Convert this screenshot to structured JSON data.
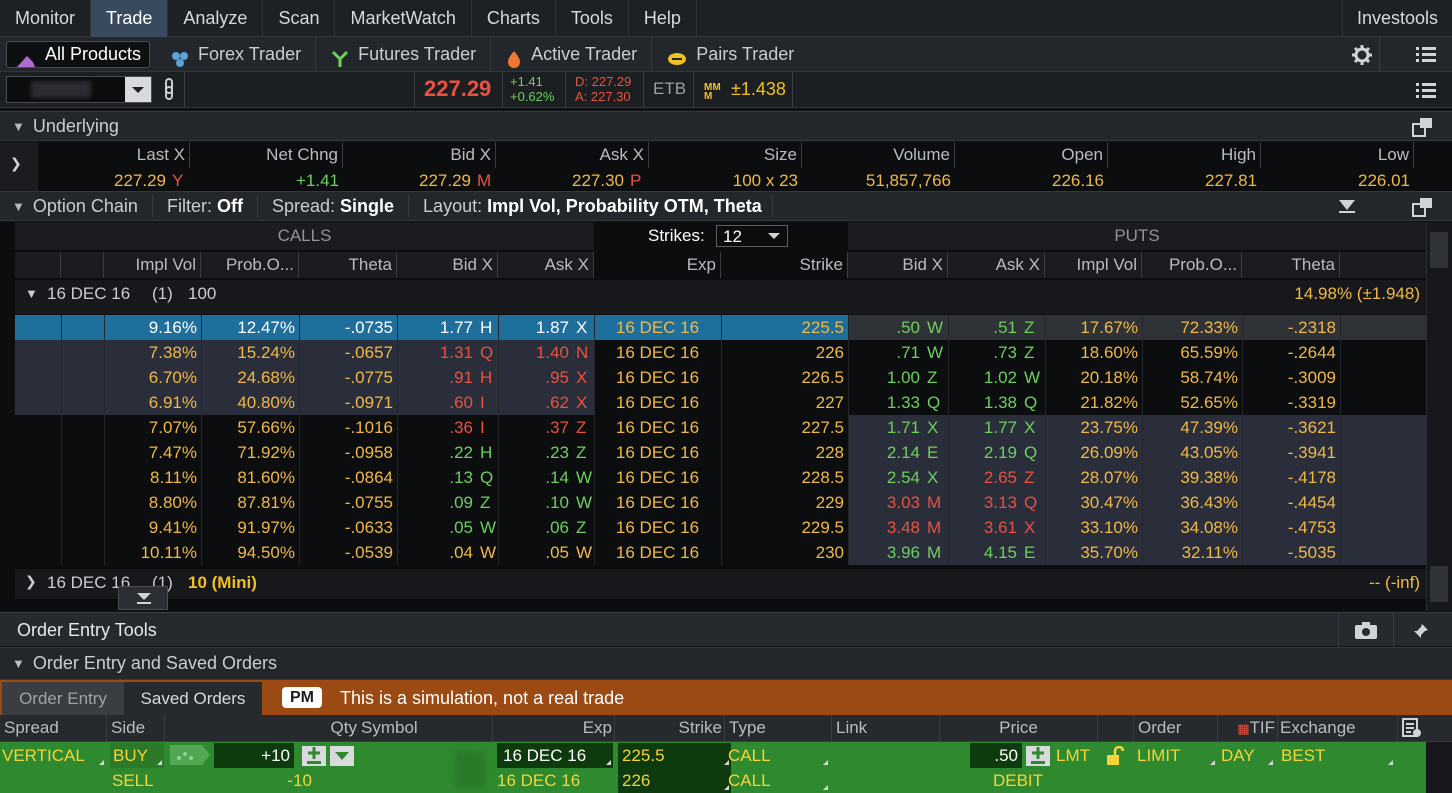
{
  "menu": {
    "items": [
      "Monitor",
      "Trade",
      "Analyze",
      "Scan",
      "MarketWatch",
      "Charts",
      "Tools",
      "Help"
    ],
    "active": "Trade",
    "right_label": "Investools"
  },
  "subtabs": [
    "All Products",
    "Forex Trader",
    "Futures Trader",
    "Active Trader",
    "Pairs Trader"
  ],
  "quote": {
    "last": "227.29",
    "change": "+1.41",
    "change_pct": "+0.62%",
    "bid": "D: 227.29",
    "ask": "A: 227.30",
    "etb": "ETB",
    "mm_value": "±1.438"
  },
  "underlying": {
    "title": "Underlying",
    "headers": [
      "Last X",
      "Net Chng",
      "Bid X",
      "Ask X",
      "Size",
      "Volume",
      "Open",
      "High",
      "Low"
    ],
    "values": {
      "last": "227.29",
      "last_ex": "Y",
      "net_chng": "+1.41",
      "bid": "227.29",
      "bid_ex": "M",
      "ask": "227.30",
      "ask_ex": "P",
      "size": "100 x 23",
      "volume": "51,857,766",
      "open": "226.16",
      "high": "227.81",
      "low": "226.01"
    }
  },
  "option_chain": {
    "title": "Option Chain",
    "filter_label": "Filter:",
    "filter_value": "Off",
    "spread_label": "Spread:",
    "spread_value": "Single",
    "layout_label": "Layout:",
    "layout_value": "Impl Vol, Probability OTM, Theta",
    "calls_label": "CALLS",
    "puts_label": "PUTS",
    "strikes_label": "Strikes:",
    "strikes_value": "12",
    "call_headers": [
      "Impl Vol",
      "Prob.O...",
      "Theta",
      "Bid X",
      "Ask X"
    ],
    "mid_headers": [
      "Exp",
      "Strike"
    ],
    "put_headers": [
      "Bid X",
      "Ask X",
      "Impl Vol",
      "Prob.O...",
      "Theta"
    ],
    "group1": {
      "label": "16 DEC 16",
      "count": "(1)",
      "mult": "100",
      "iv": "14.98% (±1.948)"
    },
    "group2": {
      "label": "16 DEC 16",
      "count": "(1)",
      "mult": "10 (Mini)",
      "iv": "-- (-inf)"
    },
    "rows": [
      {
        "civ": "9.16%",
        "cprob": "12.47%",
        "ctheta": "-.0735",
        "cbid": "1.77",
        "cbx": "H",
        "cask": "1.87",
        "cax": "X",
        "exp": "16 DEC 16",
        "strike": "225.5",
        "pbid": ".50",
        "pbx": "W",
        "pask": ".51",
        "pax": "Z",
        "piv": "17.67%",
        "pprob": "72.33%",
        "ptheta": "-.2318"
      },
      {
        "civ": "7.38%",
        "cprob": "15.24%",
        "ctheta": "-.0657",
        "cbid": "1.31",
        "cbx": "Q",
        "cask": "1.40",
        "cax": "N",
        "exp": "16 DEC 16",
        "strike": "226",
        "pbid": ".71",
        "pbx": "W",
        "pask": ".73",
        "pax": "Z",
        "piv": "18.60%",
        "pprob": "65.59%",
        "ptheta": "-.2644"
      },
      {
        "civ": "6.70%",
        "cprob": "24.68%",
        "ctheta": "-.0775",
        "cbid": ".91",
        "cbx": "H",
        "cask": ".95",
        "cax": "X",
        "exp": "16 DEC 16",
        "strike": "226.5",
        "pbid": "1.00",
        "pbx": "Z",
        "pask": "1.02",
        "pax": "W",
        "piv": "20.18%",
        "pprob": "58.74%",
        "ptheta": "-.3009"
      },
      {
        "civ": "6.91%",
        "cprob": "40.80%",
        "ctheta": "-.0971",
        "cbid": ".60",
        "cbx": "I",
        "cask": ".62",
        "cax": "X",
        "exp": "16 DEC 16",
        "strike": "227",
        "pbid": "1.33",
        "pbx": "Q",
        "pask": "1.38",
        "pax": "Q",
        "piv": "21.82%",
        "pprob": "52.65%",
        "ptheta": "-.3319"
      },
      {
        "civ": "7.07%",
        "cprob": "57.66%",
        "ctheta": "-.1016",
        "cbid": ".36",
        "cbx": "I",
        "cask": ".37",
        "cax": "Z",
        "exp": "16 DEC 16",
        "strike": "227.5",
        "pbid": "1.71",
        "pbx": "X",
        "pask": "1.77",
        "pax": "X",
        "piv": "23.75%",
        "pprob": "47.39%",
        "ptheta": "-.3621"
      },
      {
        "civ": "7.47%",
        "cprob": "71.92%",
        "ctheta": "-.0958",
        "cbid": ".22",
        "cbx": "H",
        "cask": ".23",
        "cax": "Z",
        "exp": "16 DEC 16",
        "strike": "228",
        "pbid": "2.14",
        "pbx": "E",
        "pask": "2.19",
        "pax": "Q",
        "piv": "26.09%",
        "pprob": "43.05%",
        "ptheta": "-.3941"
      },
      {
        "civ": "8.11%",
        "cprob": "81.60%",
        "ctheta": "-.0864",
        "cbid": ".13",
        "cbx": "Q",
        "cask": ".14",
        "cax": "W",
        "exp": "16 DEC 16",
        "strike": "228.5",
        "pbid": "2.54",
        "pbx": "X",
        "pask": "2.65",
        "pax": "Z",
        "piv": "28.07%",
        "pprob": "39.38%",
        "ptheta": "-.4178"
      },
      {
        "civ": "8.80%",
        "cprob": "87.81%",
        "ctheta": "-.0755",
        "cbid": ".09",
        "cbx": "Z",
        "cask": ".10",
        "cax": "W",
        "exp": "16 DEC 16",
        "strike": "229",
        "pbid": "3.03",
        "pbx": "M",
        "pask": "3.13",
        "pax": "Q",
        "piv": "30.47%",
        "pprob": "36.43%",
        "ptheta": "-.4454"
      },
      {
        "civ": "9.41%",
        "cprob": "91.97%",
        "ctheta": "-.0633",
        "cbid": ".05",
        "cbx": "W",
        "cask": ".06",
        "cax": "Z",
        "exp": "16 DEC 16",
        "strike": "229.5",
        "pbid": "3.48",
        "pbx": "M",
        "pask": "3.61",
        "pax": "X",
        "piv": "33.10%",
        "pprob": "34.08%",
        "ptheta": "-.4753"
      },
      {
        "civ": "10.11%",
        "cprob": "94.50%",
        "ctheta": "-.0539",
        "cbid": ".04",
        "cbx": "W",
        "cask": ".05",
        "cax": "W",
        "exp": "16 DEC 16",
        "strike": "230",
        "pbid": "3.96",
        "pbx": "M",
        "pask": "4.15",
        "pax": "E",
        "piv": "35.70%",
        "pprob": "32.11%",
        "ptheta": "-.5035"
      }
    ]
  },
  "order_tools": {
    "title": "Order Entry Tools",
    "section": "Order Entry and Saved Orders",
    "tab_entry": "Order Entry",
    "tab_saved": "Saved Orders",
    "pm_badge": "PM",
    "sim_notice": "This is a simulation, not a real trade",
    "headers": [
      "Spread",
      "Side",
      "Qty",
      "Symbol",
      "Exp",
      "Strike",
      "Type",
      "Link",
      "Price",
      "Order",
      "TIF",
      "Exchange"
    ],
    "row1": {
      "spread": "VERTICAL",
      "side": "BUY",
      "qty": "+10",
      "exp": "16 DEC 16",
      "strike": "225.5",
      "type": "CALL",
      "price": ".50",
      "lmt": "LMT",
      "order": "LIMIT",
      "tif": "DAY",
      "exchange": "BEST"
    },
    "row2": {
      "side": "SELL",
      "qty": "-10",
      "exp": "16 DEC 16",
      "strike": "226",
      "type": "CALL",
      "price": "DEBIT"
    }
  },
  "colors": {
    "orange": "#f0b848",
    "green": "#6ccf5e",
    "red": "#e8523f",
    "selected_row": "#1f6f9c",
    "order_green": "#2f8a2f",
    "sim_banner": "#9a4a12"
  }
}
